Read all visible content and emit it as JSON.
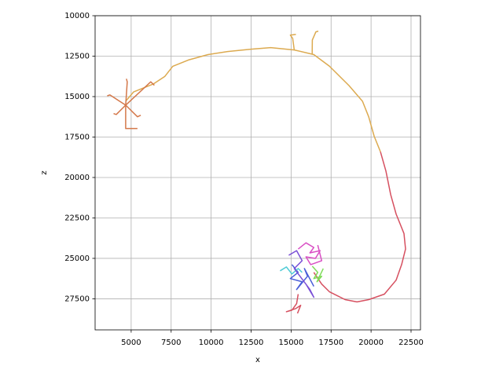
{
  "chart_data": {
    "type": "line",
    "x_label": "x",
    "y_label": "z",
    "xlim": [
      2745,
      23090
    ],
    "ylim": [
      10000,
      29420
    ],
    "y_inverted": true,
    "xticks": [
      5000,
      7500,
      10000,
      12500,
      15000,
      17500,
      20000,
      22500
    ],
    "yticks": [
      10000,
      12500,
      15000,
      17500,
      20000,
      22500,
      25000,
      27500
    ],
    "grid": true,
    "series": [
      {
        "color": "#dcaa50",
        "x": [
          4657,
          5147,
          6372,
          7108,
          7598,
          8578,
          9804,
          11029,
          12500,
          13725,
          15196,
          16422,
          17402,
          18627,
          19461,
          19853,
          20196,
          20588
        ],
        "values": [
          15288,
          14712,
          14231,
          13750,
          13125,
          12740,
          12404,
          12212,
          12067,
          11971,
          12115,
          12404,
          13125,
          14327,
          15288,
          16250,
          17452,
          18414
        ]
      },
      {
        "color": "#dcaa50",
        "x": [
          15196,
          15100,
          14950,
          15300
        ],
        "values": [
          12115,
          11400,
          11200,
          11150
        ]
      },
      {
        "color": "#dcaa50",
        "x": [
          16320,
          16330,
          16550,
          16700
        ],
        "values": [
          12400,
          11500,
          11000,
          10950
        ]
      },
      {
        "color": "#d65060",
        "x": [
          20588,
          20932,
          21226,
          21569,
          22059,
          22157,
          21912,
          21569,
          20833,
          19853,
          19118,
          18382,
          17402,
          16912,
          16422
        ],
        "values": [
          18414,
          19616,
          21058,
          22260,
          23462,
          24424,
          25386,
          26347,
          27213,
          27549,
          27693,
          27549,
          27068,
          26588,
          25866
        ]
      },
      {
        "color": "#d65060",
        "x": [
          15442,
          15343,
          15049,
          14706,
          15300,
          15600,
          15400
        ],
        "values": [
          27213,
          27800,
          28200,
          28300,
          28100,
          27900,
          28400
        ]
      },
      {
        "color": "#d4784a",
        "x": [
          4657,
          3676,
          3500
        ],
        "values": [
          15530,
          14900,
          14950
        ]
      },
      {
        "color": "#d4784a",
        "x": [
          4657,
          4755,
          4700
        ],
        "values": [
          15530,
          14090,
          13900
        ]
      },
      {
        "color": "#d4784a",
        "x": [
          4657,
          6225,
          6450
        ],
        "values": [
          15530,
          14090,
          14300
        ]
      },
      {
        "color": "#d4784a",
        "x": [
          4657,
          4069,
          3900
        ],
        "values": [
          15530,
          16110,
          16050
        ]
      },
      {
        "color": "#d4784a",
        "x": [
          4657,
          5392,
          5600
        ],
        "values": [
          15530,
          16250,
          16150
        ]
      },
      {
        "color": "#d4784a",
        "x": [
          4657,
          4657,
          5392
        ],
        "values": [
          15530,
          16970,
          16970
        ]
      },
      {
        "color": "#d94fc4",
        "x": [
          15442,
          15932,
          16422,
          16177,
          16814,
          16520,
          15932,
          16226,
          16912,
          16667
        ],
        "values": [
          24424,
          24039,
          24327,
          24664,
          24520,
          25000,
          24904,
          25386,
          25144,
          24183
        ]
      },
      {
        "color": "#4a5ed8",
        "x": [
          15049,
          15442,
          14951,
          15687,
          15343,
          16030,
          15834,
          16422
        ],
        "values": [
          25386,
          25866,
          26251,
          26443,
          26924,
          26106,
          25626,
          26732
        ]
      },
      {
        "color": "#4fcbd6",
        "x": [
          14314,
          14706,
          15049,
          15442,
          15687
        ],
        "values": [
          25770,
          25530,
          25963,
          25626,
          25866
        ]
      },
      {
        "color": "#7fdc5a",
        "x": [
          16324,
          16667,
          16422,
          16912,
          16618,
          17010
        ],
        "values": [
          25482,
          25866,
          26251,
          26106,
          26443,
          25626
        ]
      },
      {
        "color": "#7a4fd6",
        "x": [
          14853,
          15343,
          15687,
          15196,
          16177,
          16422,
          15932
        ],
        "values": [
          24808,
          24520,
          25144,
          25626,
          26924,
          27405,
          26588
        ]
      }
    ]
  }
}
